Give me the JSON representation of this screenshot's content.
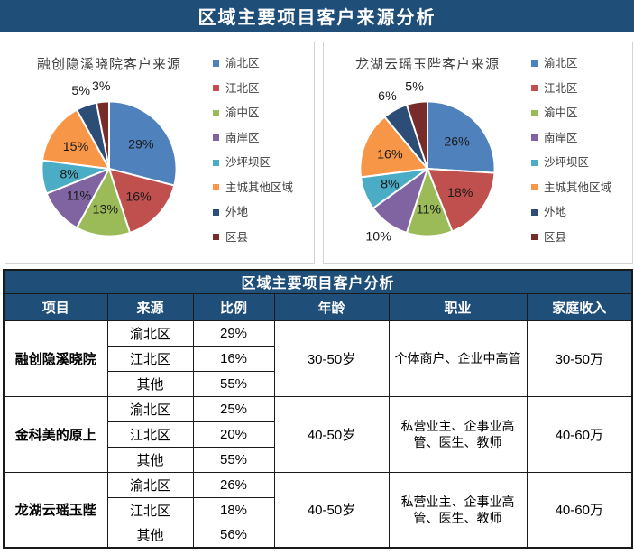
{
  "banner": {
    "title": "区域主要项目客户来源分析"
  },
  "colors": {
    "banner_bg": "#1F4E79",
    "table_header_bg": "#1F4E79",
    "panel_border": "#D3D3D3",
    "table_border": "#1A1A1A",
    "pie_palette": [
      "#4F81BD",
      "#C0504D",
      "#9BBB59",
      "#8064A2",
      "#4BACC6",
      "#F79646",
      "#2C4D75",
      "#772C2A"
    ]
  },
  "chart_data": [
    {
      "type": "pie",
      "title": "融创隐溪晓院客户来源",
      "categories": [
        "渝北区",
        "江北区",
        "渝中区",
        "南岸区",
        "沙坪坝区",
        "主城其他区域",
        "外地",
        "区县"
      ],
      "values": [
        29,
        16,
        13,
        11,
        8,
        15,
        5,
        3
      ],
      "colors": [
        "#4F81BD",
        "#C0504D",
        "#9BBB59",
        "#8064A2",
        "#4BACC6",
        "#F79646",
        "#2C4D75",
        "#772C2A"
      ],
      "labels": [
        "29%",
        "16%",
        "13%",
        "11%",
        "8%",
        "15%",
        "5%",
        "3%"
      ],
      "labels_outside": [
        false,
        false,
        false,
        false,
        false,
        false,
        true,
        true
      ],
      "legend_position": "right",
      "start_angle_deg": 0,
      "direction": "clockwise"
    },
    {
      "type": "pie",
      "title": "龙湖云瑶玉陛客户来源",
      "categories": [
        "渝北区",
        "江北区",
        "渝中区",
        "南岸区",
        "沙坪坝区",
        "主城其他区域",
        "外地",
        "区县"
      ],
      "values": [
        26,
        18,
        11,
        10,
        8,
        16,
        6,
        5
      ],
      "colors": [
        "#4F81BD",
        "#C0504D",
        "#9BBB59",
        "#8064A2",
        "#4BACC6",
        "#F79646",
        "#2C4D75",
        "#772C2A"
      ],
      "labels": [
        "26%",
        "18%",
        "11%",
        "10%",
        "8%",
        "16%",
        "6%",
        "5%"
      ],
      "labels_outside": [
        false,
        false,
        false,
        true,
        false,
        false,
        true,
        true
      ],
      "legend_position": "right",
      "start_angle_deg": 0,
      "direction": "clockwise"
    }
  ],
  "table": {
    "title": "区域主要项目客户分析",
    "columns": [
      "项目",
      "来源",
      "比例",
      "年龄",
      "职业",
      "家庭收入"
    ],
    "groups": [
      {
        "project": "融创隐溪晓院",
        "rows": [
          [
            "渝北区",
            "29%"
          ],
          [
            "江北区",
            "16%"
          ],
          [
            "其他",
            "55%"
          ]
        ],
        "age": "30-50岁",
        "occupation": "个体商户、企业中高管",
        "income": "30-50万"
      },
      {
        "project": "金科美的原上",
        "rows": [
          [
            "渝北区",
            "25%"
          ],
          [
            "江北区",
            "20%"
          ],
          [
            "其他",
            "55%"
          ]
        ],
        "age": "40-50岁",
        "occupation": "私营业主、企事业高管、医生、教师",
        "income": "40-60万"
      },
      {
        "project": "龙湖云瑶玉陛",
        "rows": [
          [
            "渝北区",
            "26%"
          ],
          [
            "江北区",
            "18%"
          ],
          [
            "其他",
            "56%"
          ]
        ],
        "age": "40-50岁",
        "occupation": "私营业主、企事业高管、医生、教师",
        "income": "40-60万"
      }
    ]
  }
}
